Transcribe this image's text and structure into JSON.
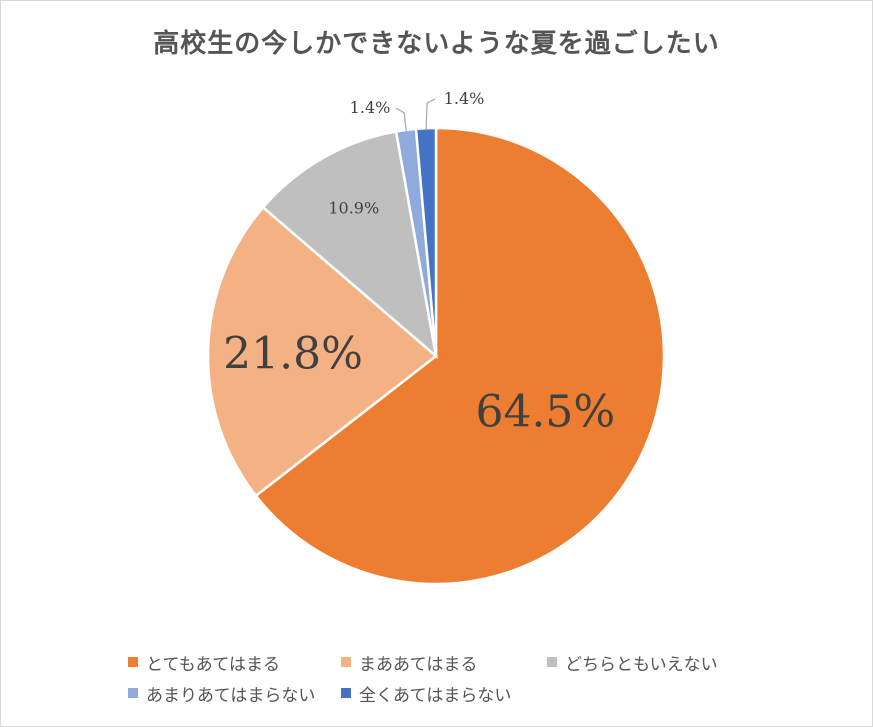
{
  "chart_data": {
    "type": "pie",
    "title": "高校生の今しかできないような夏を過ごしたい",
    "slices": [
      {
        "label": "とてもあてはまる",
        "value": 64.5,
        "value_label": "64.5%",
        "color": "#ed7d31"
      },
      {
        "label": "まああてはまる",
        "value": 21.8,
        "value_label": "21.8%",
        "color": "#f4b183"
      },
      {
        "label": "どちらともいえない",
        "value": 10.9,
        "value_label": "10.9%",
        "color": "#bfbfbf"
      },
      {
        "label": "あまりあてはまらない",
        "value": 1.4,
        "value_label": "1.4%",
        "color": "#8faadc"
      },
      {
        "label": "全くあてはまらない",
        "value": 1.4,
        "value_label": "1.4%",
        "color": "#4472c4"
      }
    ],
    "legend_position": "bottom"
  }
}
